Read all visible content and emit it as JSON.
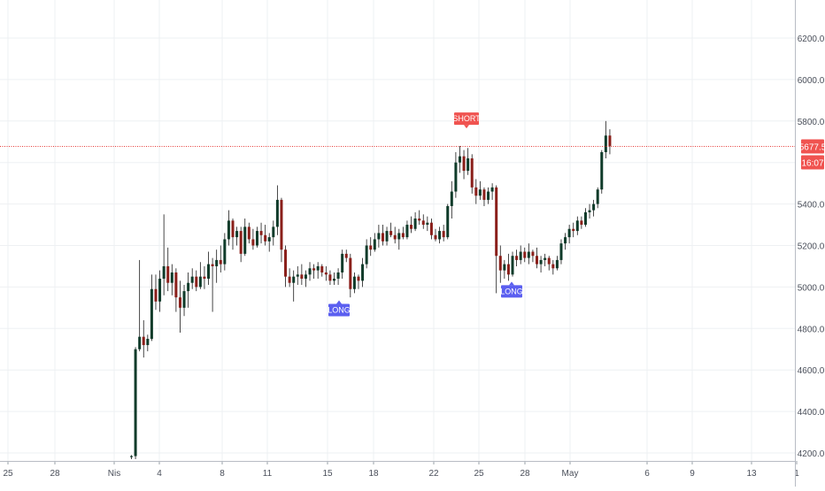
{
  "chart_data": {
    "type": "candlestick",
    "y_ticks": [
      "6200.0",
      "6000.0",
      "5800.0",
      "5400.0",
      "5200.0",
      "5000.0",
      "4800.0",
      "4600.0",
      "4400.0",
      "4200.0"
    ],
    "x_ticks": [
      "25",
      "28",
      "Nis",
      "4",
      "8",
      "11",
      "15",
      "18",
      "22",
      "25",
      "28",
      "May",
      "6",
      "9",
      "13",
      "1"
    ],
    "ylim": [
      4175,
      6420
    ],
    "grid": true,
    "current_price": "5677.5",
    "countdown": "16:07",
    "signals": [
      {
        "label": "SHORT",
        "type": "short",
        "price": 5760
      },
      {
        "label": "LONG",
        "type": "long",
        "price": 4940
      },
      {
        "label": "LONG",
        "type": "long",
        "price": 5030
      }
    ],
    "candles": [
      [
        4180,
        4190,
        4170,
        4185
      ],
      [
        4185,
        4710,
        4170,
        4700
      ],
      [
        4700,
        5130,
        4690,
        4760
      ],
      [
        4760,
        4840,
        4660,
        4720
      ],
      [
        4720,
        4770,
        4690,
        4750
      ],
      [
        4750,
        5060,
        4740,
        4990
      ],
      [
        4990,
        5060,
        4890,
        4930
      ],
      [
        4930,
        5080,
        4880,
        5040
      ],
      [
        5040,
        5350,
        4960,
        5100
      ],
      [
        5100,
        5190,
        4980,
        5020
      ],
      [
        5020,
        5110,
        4960,
        5070
      ],
      [
        5070,
        5090,
        4880,
        4950
      ],
      [
        4950,
        5030,
        4780,
        4900
      ],
      [
        4900,
        5010,
        4860,
        4980
      ],
      [
        4980,
        5070,
        4900,
        5020
      ],
      [
        5020,
        5090,
        4990,
        5050
      ],
      [
        5050,
        5080,
        4980,
        5000
      ],
      [
        5000,
        5120,
        4990,
        5050
      ],
      [
        5050,
        5100,
        4990,
        5040
      ],
      [
        5040,
        5170,
        5010,
        5110
      ],
      [
        5110,
        5140,
        4880,
        5100
      ],
      [
        5100,
        5180,
        5020,
        5130
      ],
      [
        5130,
        5200,
        5070,
        5110
      ],
      [
        5110,
        5260,
        5080,
        5230
      ],
      [
        5230,
        5370,
        5200,
        5320
      ],
      [
        5320,
        5330,
        5180,
        5240
      ],
      [
        5240,
        5290,
        5200,
        5270
      ],
      [
        5270,
        5290,
        5120,
        5160
      ],
      [
        5160,
        5330,
        5150,
        5290
      ],
      [
        5290,
        5310,
        5210,
        5230
      ],
      [
        5230,
        5280,
        5180,
        5200
      ],
      [
        5200,
        5290,
        5190,
        5270
      ],
      [
        5270,
        5310,
        5210,
        5250
      ],
      [
        5250,
        5300,
        5200,
        5220
      ],
      [
        5220,
        5260,
        5170,
        5240
      ],
      [
        5240,
        5320,
        5200,
        5290
      ],
      [
        5290,
        5490,
        5250,
        5420
      ],
      [
        5420,
        5430,
        5120,
        5180
      ],
      [
        5180,
        5200,
        5000,
        5050
      ],
      [
        5050,
        5090,
        5000,
        5020
      ],
      [
        5020,
        5080,
        4930,
        5050
      ],
      [
        5050,
        5100,
        5010,
        5060
      ],
      [
        5060,
        5110,
        5010,
        5040
      ],
      [
        5040,
        5080,
        5000,
        5060
      ],
      [
        5060,
        5120,
        5030,
        5090
      ],
      [
        5090,
        5110,
        5040,
        5080
      ],
      [
        5080,
        5120,
        5040,
        5100
      ],
      [
        5100,
        5110,
        5050,
        5070
      ],
      [
        5070,
        5100,
        5030,
        5060
      ],
      [
        5060,
        5080,
        5010,
        5030
      ],
      [
        5030,
        5070,
        5010,
        5040
      ],
      [
        5040,
        5090,
        5010,
        5070
      ],
      [
        5070,
        5180,
        5040,
        5160
      ],
      [
        5160,
        5180,
        5120,
        5140
      ],
      [
        5140,
        5160,
        4950,
        4990
      ],
      [
        4990,
        5070,
        4970,
        5050
      ],
      [
        5050,
        5060,
        4990,
        5030
      ],
      [
        5030,
        5140,
        5000,
        5110
      ],
      [
        5110,
        5230,
        5090,
        5200
      ],
      [
        5200,
        5240,
        5150,
        5180
      ],
      [
        5180,
        5260,
        5170,
        5230
      ],
      [
        5230,
        5300,
        5190,
        5260
      ],
      [
        5260,
        5300,
        5200,
        5220
      ],
      [
        5220,
        5290,
        5200,
        5270
      ],
      [
        5270,
        5310,
        5240,
        5250
      ],
      [
        5250,
        5290,
        5210,
        5230
      ],
      [
        5230,
        5280,
        5180,
        5260
      ],
      [
        5260,
        5290,
        5230,
        5240
      ],
      [
        5240,
        5320,
        5230,
        5300
      ],
      [
        5300,
        5340,
        5260,
        5280
      ],
      [
        5280,
        5360,
        5270,
        5330
      ],
      [
        5330,
        5370,
        5300,
        5320
      ],
      [
        5320,
        5350,
        5280,
        5300
      ],
      [
        5300,
        5340,
        5270,
        5310
      ],
      [
        5310,
        5330,
        5230,
        5250
      ],
      [
        5250,
        5280,
        5220,
        5230
      ],
      [
        5230,
        5290,
        5210,
        5270
      ],
      [
        5270,
        5300,
        5220,
        5240
      ],
      [
        5240,
        5400,
        5230,
        5390
      ],
      [
        5390,
        5510,
        5330,
        5460
      ],
      [
        5460,
        5650,
        5430,
        5600
      ],
      [
        5600,
        5680,
        5550,
        5630
      ],
      [
        5630,
        5660,
        5520,
        5560
      ],
      [
        5560,
        5670,
        5540,
        5620
      ],
      [
        5620,
        5640,
        5450,
        5480
      ],
      [
        5480,
        5520,
        5400,
        5440
      ],
      [
        5440,
        5510,
        5420,
        5470
      ],
      [
        5470,
        5480,
        5390,
        5420
      ],
      [
        5420,
        5480,
        5400,
        5460
      ],
      [
        5460,
        5500,
        5420,
        5480
      ],
      [
        5480,
        5490,
        4970,
        5150
      ],
      [
        5150,
        5200,
        5020,
        5080
      ],
      [
        5080,
        5130,
        5040,
        5110
      ],
      [
        5110,
        5160,
        5030,
        5060
      ],
      [
        5060,
        5170,
        5050,
        5150
      ],
      [
        5150,
        5180,
        5100,
        5130
      ],
      [
        5130,
        5200,
        5110,
        5170
      ],
      [
        5170,
        5190,
        5120,
        5140
      ],
      [
        5140,
        5210,
        5110,
        5170
      ],
      [
        5170,
        5180,
        5120,
        5150
      ],
      [
        5150,
        5190,
        5090,
        5110
      ],
      [
        5110,
        5150,
        5070,
        5130
      ],
      [
        5130,
        5160,
        5100,
        5140
      ],
      [
        5140,
        5150,
        5080,
        5110
      ],
      [
        5110,
        5130,
        5060,
        5090
      ],
      [
        5090,
        5150,
        5080,
        5130
      ],
      [
        5130,
        5230,
        5110,
        5210
      ],
      [
        5210,
        5260,
        5180,
        5240
      ],
      [
        5240,
        5300,
        5210,
        5280
      ],
      [
        5280,
        5310,
        5240,
        5270
      ],
      [
        5270,
        5340,
        5250,
        5320
      ],
      [
        5320,
        5340,
        5280,
        5300
      ],
      [
        5300,
        5380,
        5290,
        5360
      ],
      [
        5360,
        5400,
        5330,
        5370
      ],
      [
        5370,
        5420,
        5340,
        5400
      ],
      [
        5400,
        5480,
        5380,
        5470
      ],
      [
        5470,
        5660,
        5450,
        5650
      ],
      [
        5650,
        5800,
        5620,
        5730
      ],
      [
        5730,
        5760,
        5640,
        5680
      ]
    ]
  }
}
